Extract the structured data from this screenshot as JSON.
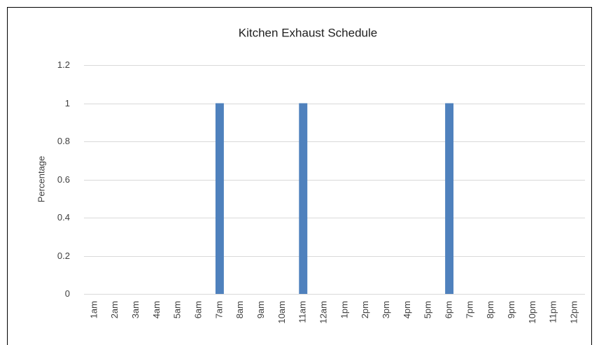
{
  "chart_data": {
    "type": "bar",
    "title": "Kitchen Exhaust Schedule",
    "y_label": "Percentage",
    "categories": [
      "1am",
      "2am",
      "3am",
      "4am",
      "5am",
      "6am",
      "7am",
      "8am",
      "9am",
      "10am",
      "11am",
      "12am",
      "1pm",
      "2pm",
      "3pm",
      "4pm",
      "5pm",
      "6pm",
      "7pm",
      "8pm",
      "9pm",
      "10pm",
      "11pm",
      "12pm"
    ],
    "values": [
      0,
      0,
      0,
      0,
      0,
      0,
      1,
      0,
      0,
      0,
      1,
      0,
      0,
      0,
      0,
      0,
      0,
      1,
      0,
      0,
      0,
      0,
      0,
      0
    ],
    "color": "#4f81bd",
    "ylim": [
      0,
      1.2
    ],
    "yticks": [
      0,
      0.2,
      0.4,
      0.6,
      0.8,
      1,
      1.2
    ],
    "grid": true
  }
}
